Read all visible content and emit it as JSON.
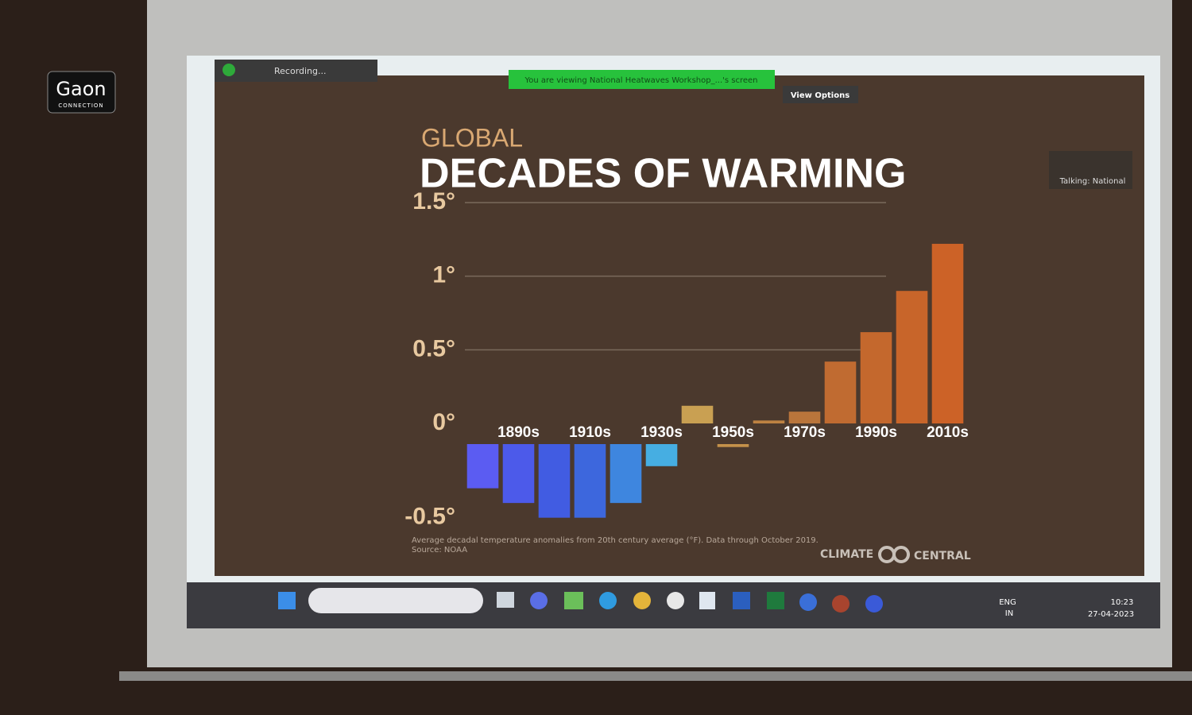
{
  "watermark": {
    "brand": "Gaon",
    "sub": "CONNECTION"
  },
  "zoom": {
    "recording": "Recording...",
    "banner": "You are viewing National Heatwaves Workshop_...'s screen",
    "view_options": "View Options",
    "talking": "Talking: National"
  },
  "chart_data": {
    "type": "bar",
    "supertitle": "GLOBAL",
    "title": "DECADES OF WARMING",
    "categories": [
      null,
      "1890s",
      null,
      "1910s",
      null,
      "1930s",
      null,
      "1950s",
      null,
      "1970s",
      null,
      "1990s",
      null,
      "2010s"
    ],
    "values": [
      -0.3,
      -0.4,
      -0.5,
      -0.5,
      -0.4,
      -0.15,
      0.12,
      -0.02,
      0.02,
      0.08,
      0.42,
      0.62,
      0.9,
      1.22
    ],
    "colors": [
      "#5b5cf2",
      "#4c5aea",
      "#415ce2",
      "#3d67dd",
      "#3e86df",
      "#46aee2",
      "#c9a052",
      "#c4914a",
      "#bd8242",
      "#b9753b",
      "#c06b31",
      "#c4682d",
      "#c8652a",
      "#cc6227"
    ],
    "ylim": [
      -0.5,
      1.5
    ],
    "yticks": [
      {
        "value": -0.5,
        "label": "-0.5°"
      },
      {
        "value": 0,
        "label": "0°"
      },
      {
        "value": 0.5,
        "label": "0.5°"
      },
      {
        "value": 1,
        "label": "1°"
      },
      {
        "value": 1.5,
        "label": "1.5°"
      }
    ],
    "grid": true,
    "note": "Average decadal temperature anomalies from 20th century average (°F). Data through October 2019.",
    "source": "Source: NOAA",
    "logo_left": "CLIMATE",
    "logo_right": "CENTRAL"
  },
  "taskbar": {
    "lang": "ENG",
    "region": "IN",
    "time": "10:23",
    "date": "27-04-2023"
  }
}
